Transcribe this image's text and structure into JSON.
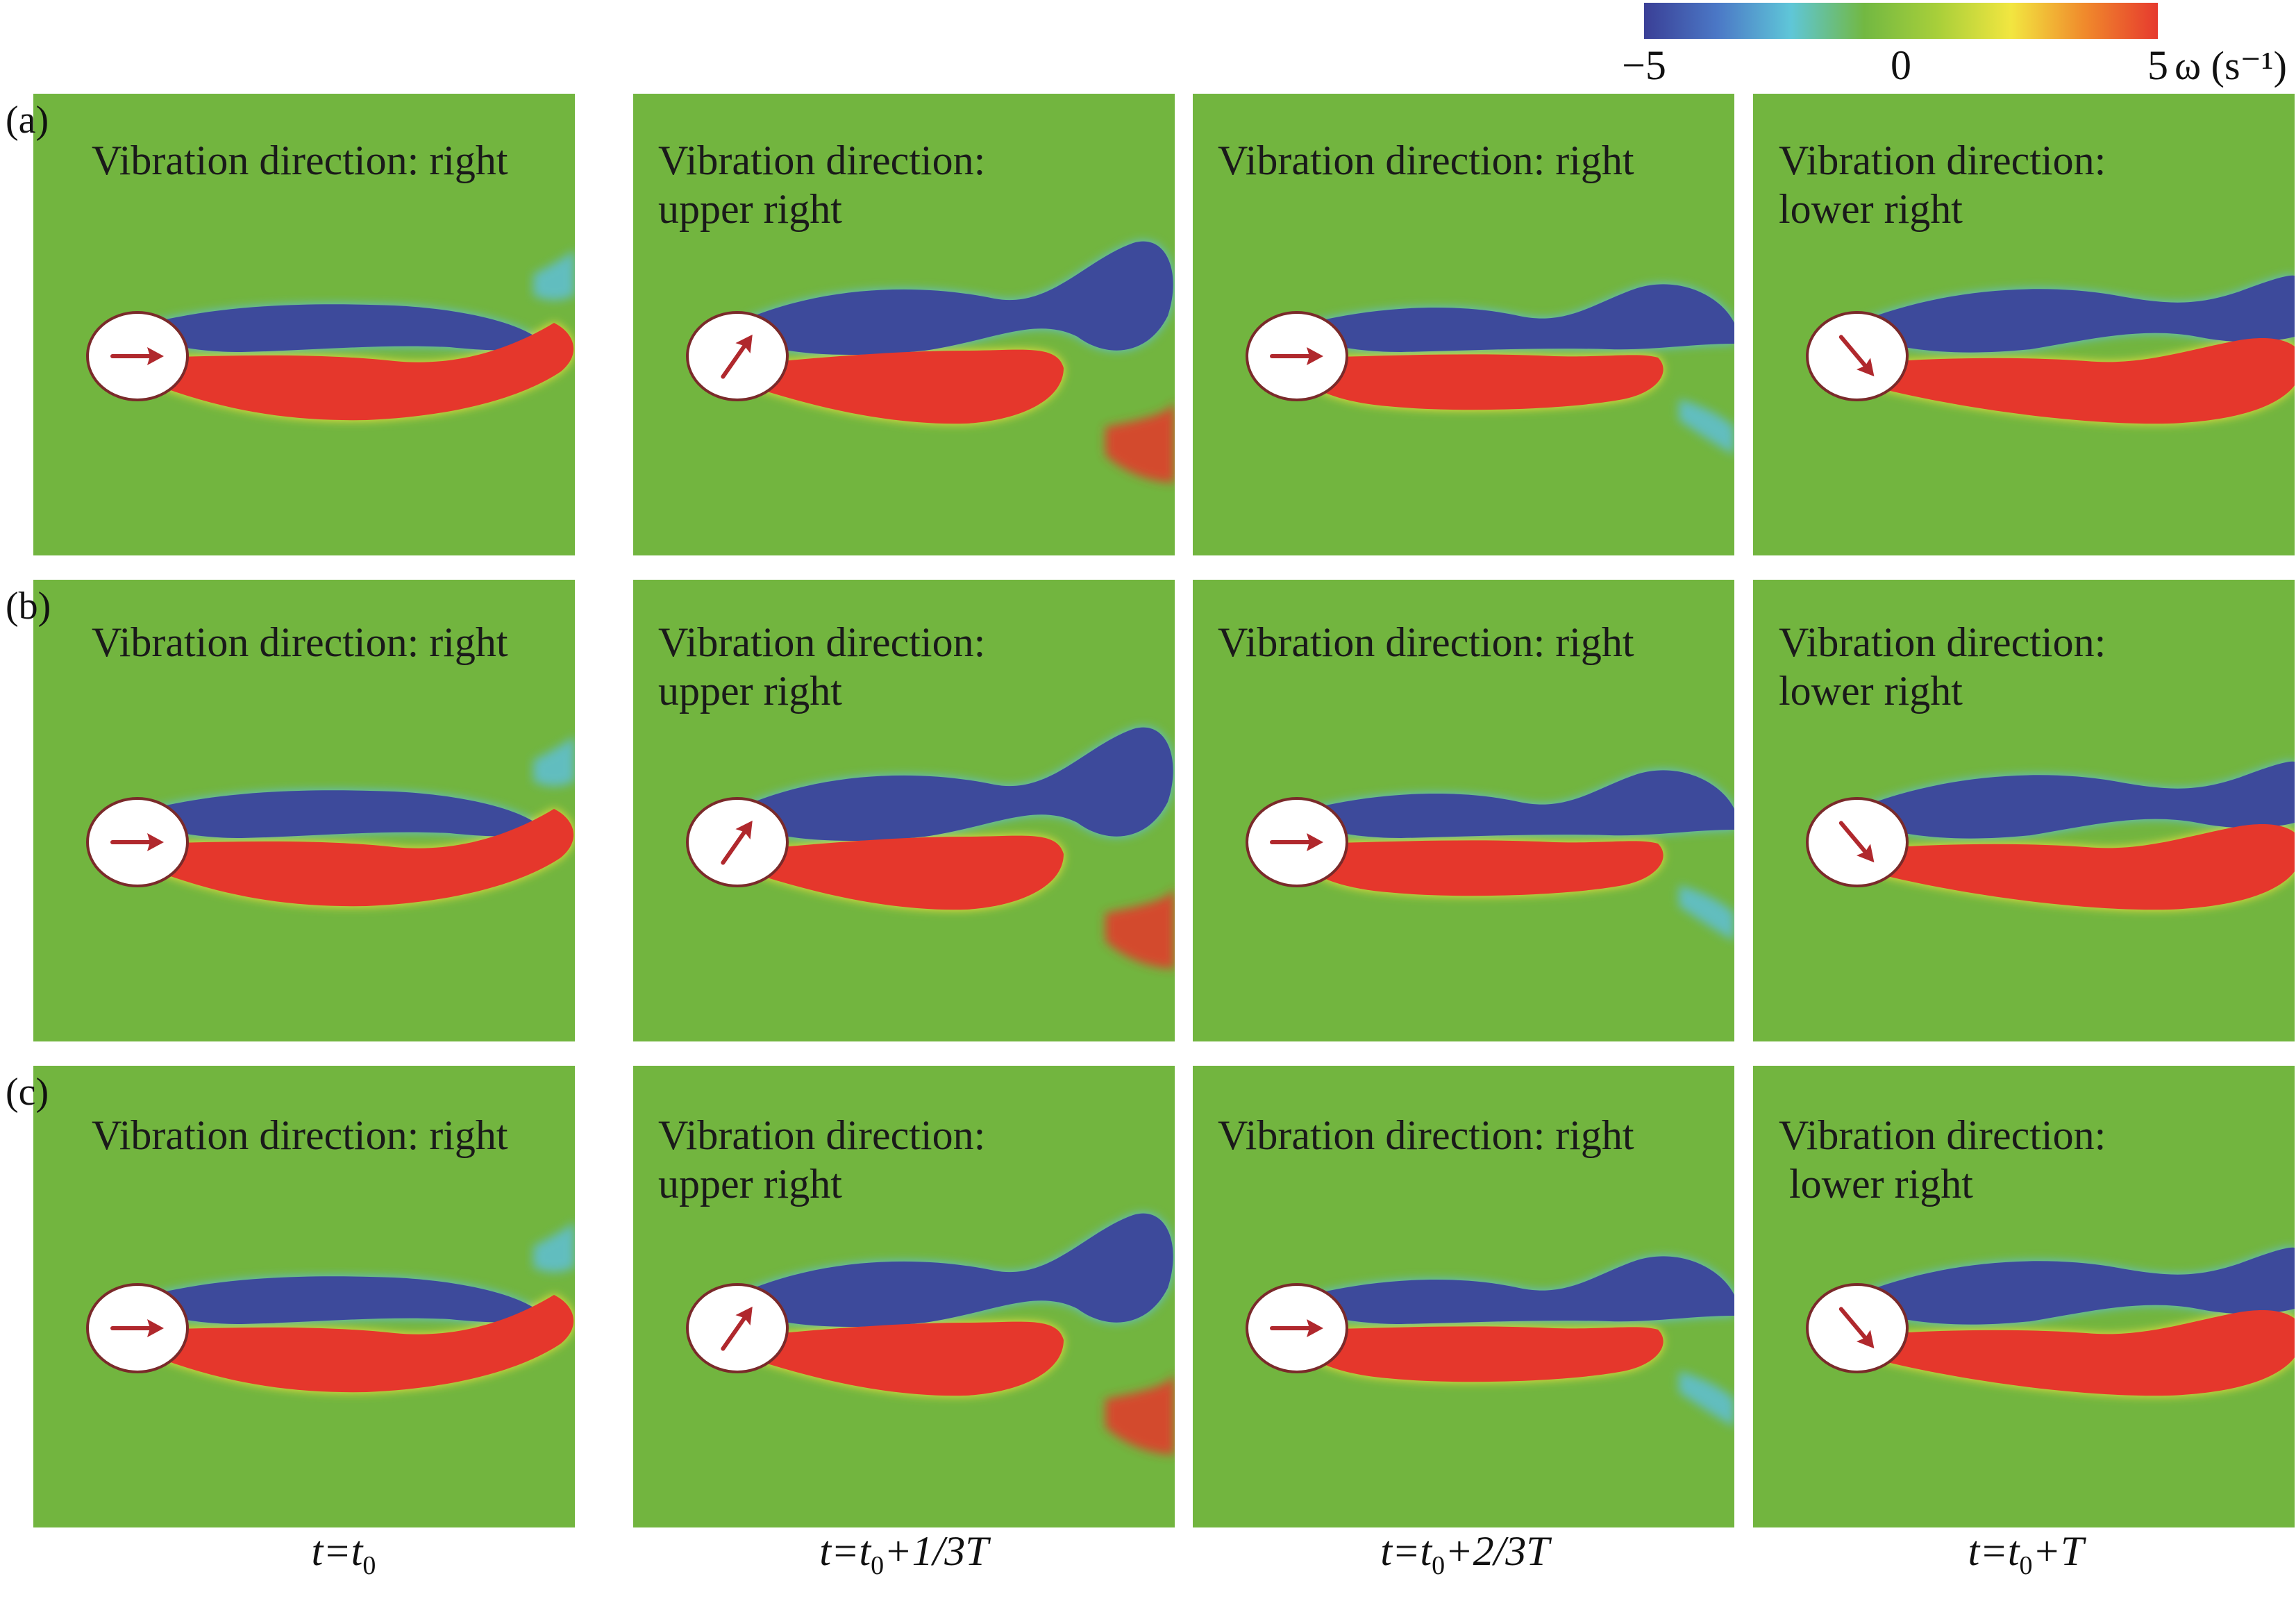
{
  "colorbar": {
    "tick_min": "−5",
    "tick_mid": "0",
    "tick_max": "5",
    "unit": "ω (s⁻¹)",
    "colors": [
      "#3a3f96",
      "#4b78c6",
      "#5fc6d8",
      "#72b842",
      "#a8cf3a",
      "#f2e640",
      "#f08a2c",
      "#e63a2e"
    ]
  },
  "rows": [
    {
      "label": "(a)",
      "panels": [
        {
          "text": "Vibration direction: right",
          "arrow": "right"
        },
        {
          "text": "Vibration direction:\nupper right",
          "arrow": "upper-right"
        },
        {
          "text": "Vibration direction: right",
          "arrow": "right"
        },
        {
          "text": "Vibration direction:\nlower right",
          "arrow": "lower-right"
        }
      ]
    },
    {
      "label": "(b)",
      "panels": [
        {
          "text": "Vibration direction: right",
          "arrow": "right"
        },
        {
          "text": "Vibration direction:\nupper right",
          "arrow": "upper-right"
        },
        {
          "text": "Vibration direction: right",
          "arrow": "right"
        },
        {
          "text": "Vibration direction:\nlower right",
          "arrow": "lower-right"
        }
      ]
    },
    {
      "label": "(c)",
      "panels": [
        {
          "text": "Vibration direction: right",
          "arrow": "right"
        },
        {
          "text": "Vibration direction:\nupper right",
          "arrow": "upper-right"
        },
        {
          "text": "Vibration direction: right",
          "arrow": "right"
        },
        {
          "text": "Vibration direction:\n lower right",
          "arrow": "lower-right"
        }
      ]
    }
  ],
  "columns": [
    {
      "caption_main": "t=t",
      "caption_sub": "0",
      "caption_tail": ""
    },
    {
      "caption_main": "t=t",
      "caption_sub": "0",
      "caption_tail": "+1/3T"
    },
    {
      "caption_main": "t=t",
      "caption_sub": "0",
      "caption_tail": "+2/3T"
    },
    {
      "caption_main": "t=t",
      "caption_sub": "0",
      "caption_tail": "+T"
    }
  ],
  "field_colors": {
    "background": "#72b53f",
    "negative": "#3d4a9b",
    "negative_edge": "#5fbfd6",
    "positive": "#e5372c",
    "positive_edge": "#f2e13c",
    "cylinder": "#ffffff",
    "arrow": "#b0282d"
  }
}
